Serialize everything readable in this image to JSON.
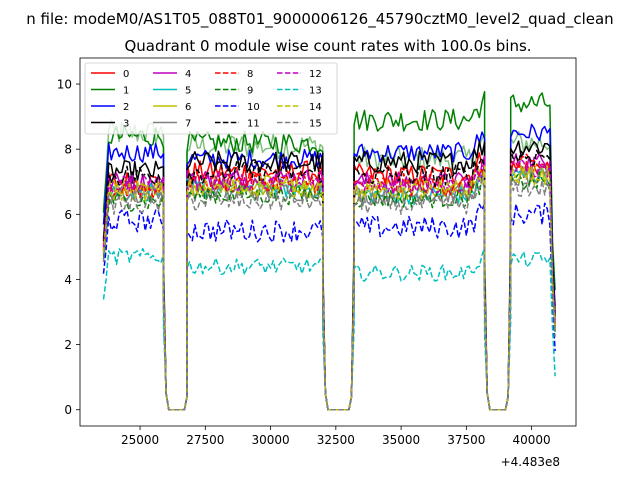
{
  "chart_data": {
    "type": "line",
    "suptitle": "n file: modeM0/AS1T05_088T01_9000006126_45790cztM0_level2_quad_clean",
    "title": "Quadrant 0 module wise count rates with 100.0s bins.",
    "xlabel": "",
    "ylabel": "",
    "x_offset_label": "+4.483e8",
    "xlim": [
      22700,
      41700
    ],
    "ylim": [
      -0.5,
      10.8
    ],
    "xticks": [
      25000,
      27500,
      30000,
      32500,
      35000,
      37500,
      40000
    ],
    "xtick_labels": [
      "25000",
      "27500",
      "30000",
      "32500",
      "35000",
      "37500",
      "40000"
    ],
    "yticks": [
      0,
      2,
      4,
      6,
      8,
      10
    ],
    "ytick_labels": [
      "0",
      "2",
      "4",
      "6",
      "8",
      "10"
    ],
    "grid": false,
    "legend_position": "top-left",
    "bin_size_s": 100,
    "segments": [
      {
        "x_start": 23600,
        "x_end": 25900
      },
      {
        "x_start": 26800,
        "x_end": 32000
      },
      {
        "x_start": 33200,
        "x_end": 38200
      },
      {
        "x_start": 39200,
        "x_end": 40900
      }
    ],
    "gaps": [
      {
        "x": [
          25900,
          26000,
          26100,
          26700,
          26800
        ],
        "y": [
          2.5,
          0.5,
          0,
          0,
          0.4
        ]
      },
      {
        "x": [
          32000,
          32100,
          32200,
          33000,
          33100,
          33200
        ],
        "y": [
          2.5,
          0.5,
          0,
          0,
          0.4,
          2.5
        ]
      },
      {
        "x": [
          38200,
          38300,
          38400,
          39000,
          39100,
          39200
        ],
        "y": [
          2.5,
          0.5,
          0,
          0,
          0.4,
          2.5
        ]
      }
    ],
    "series": [
      {
        "name": "0",
        "color": "#ff0000",
        "dash": "solid",
        "mean": [
          7.0,
          7.3,
          7.2,
          7.4
        ],
        "noise": 0.35
      },
      {
        "name": "1",
        "color": "#008000",
        "dash": "solid",
        "mean": [
          8.4,
          8.2,
          8.9,
          9.4
        ],
        "noise": 0.35
      },
      {
        "name": "2",
        "color": "#0000ff",
        "dash": "solid",
        "mean": [
          7.9,
          7.7,
          7.9,
          8.5
        ],
        "noise": 0.3
      },
      {
        "name": "3",
        "color": "#000000",
        "dash": "solid",
        "mean": [
          7.3,
          7.6,
          7.6,
          8.1
        ],
        "noise": 0.35
      },
      {
        "name": "4",
        "color": "#bf00bf",
        "dash": "solid",
        "mean": [
          7.0,
          7.1,
          7.0,
          7.6
        ],
        "noise": 0.3
      },
      {
        "name": "5",
        "color": "#00bfbf",
        "dash": "solid",
        "mean": [
          6.7,
          6.8,
          6.6,
          7.2
        ],
        "noise": 0.3
      },
      {
        "name": "6",
        "color": "#bfbf00",
        "dash": "solid",
        "mean": [
          6.8,
          6.9,
          6.8,
          7.3
        ],
        "noise": 0.3
      },
      {
        "name": "7",
        "color": "#808080",
        "dash": "solid",
        "mean": [
          6.6,
          6.7,
          6.6,
          7.1
        ],
        "noise": 0.3
      },
      {
        "name": "8",
        "color": "#ff0000",
        "dash": "dashed",
        "mean": [
          6.8,
          7.0,
          6.9,
          7.5
        ],
        "noise": 0.35
      },
      {
        "name": "9",
        "color": "#008000",
        "dash": "dashed",
        "mean": [
          6.4,
          6.6,
          6.5,
          7.0
        ],
        "noise": 0.3
      },
      {
        "name": "10",
        "color": "#0000ff",
        "dash": "dashed",
        "mean": [
          5.8,
          5.5,
          5.6,
          6.0
        ],
        "noise": 0.35
      },
      {
        "name": "11",
        "color": "#000000",
        "dash": "dashed",
        "mean": [
          7.2,
          7.3,
          7.2,
          7.8
        ],
        "noise": 0.35
      },
      {
        "name": "12",
        "color": "#bf00bf",
        "dash": "dashed",
        "mean": [
          6.9,
          7.0,
          6.9,
          7.4
        ],
        "noise": 0.3
      },
      {
        "name": "13",
        "color": "#00bfbf",
        "dash": "dashed",
        "mean": [
          4.7,
          4.4,
          4.2,
          4.6
        ],
        "noise": 0.25
      },
      {
        "name": "14",
        "color": "#bfbf00",
        "dash": "dashed",
        "mean": [
          6.7,
          6.8,
          6.7,
          7.2
        ],
        "noise": 0.3
      },
      {
        "name": "15",
        "color": "#808080",
        "dash": "dashed",
        "mean": [
          6.3,
          6.4,
          6.3,
          6.8
        ],
        "noise": 0.3
      },
      {
        "name": "",
        "color": "#7fbf7f",
        "dash": "solid",
        "mean": [
          8.5,
          8.1,
          7.7,
          8.2
        ],
        "noise": 0.4,
        "in_legend": false
      }
    ]
  }
}
